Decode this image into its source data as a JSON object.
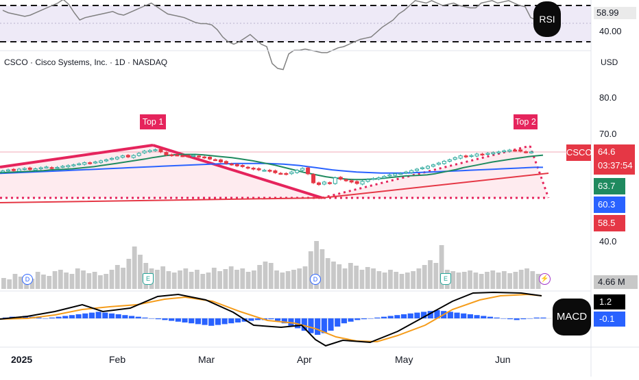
{
  "header": {
    "symbol_line": "CSCO · Cisco Systems, Inc. · 1D · NASDAQ",
    "currency": "USD"
  },
  "price_axis": {
    "ticks": [
      "80.0",
      "70.0",
      "40.0"
    ],
    "labels": [
      {
        "text": "CSCO",
        "bg": "#e53745",
        "fg": "#ffffff"
      },
      {
        "text": "64.6",
        "bg": "#e53745",
        "fg": "#ffffff"
      },
      {
        "text": "03:37:54",
        "bg": "#e53745",
        "fg": "#ffffff"
      },
      {
        "text": "63.7",
        "bg": "#1f8a5f",
        "fg": "#ffffff"
      },
      {
        "text": "60.3",
        "bg": "#2962ff",
        "fg": "#ffffff"
      },
      {
        "text": "58.5",
        "bg": "#e53745",
        "fg": "#ffffff"
      }
    ]
  },
  "rsi": {
    "badge": "RSI",
    "value_label": "58.99",
    "level_label": "40.00",
    "upper_level": 70,
    "lower_level": 40,
    "values": [
      66,
      64,
      63,
      62,
      61,
      62,
      64,
      66,
      68,
      70,
      72,
      75,
      71,
      64,
      58,
      60,
      61,
      62,
      63,
      64,
      65,
      63,
      62,
      64,
      66,
      68,
      70,
      72,
      69,
      66,
      63,
      62,
      61,
      60,
      58,
      56,
      55,
      55,
      54,
      50,
      44,
      40,
      38,
      40,
      43,
      46,
      42,
      38,
      36,
      22,
      18,
      17,
      30,
      33,
      33,
      34,
      33,
      32,
      31,
      31,
      33,
      35,
      36,
      38,
      40,
      42,
      43,
      44,
      48,
      52,
      55,
      58,
      63,
      66,
      70,
      74,
      73,
      72,
      74,
      72,
      70,
      71,
      72,
      70,
      69,
      68,
      68,
      72,
      73,
      74,
      72,
      73,
      74,
      72,
      70,
      69,
      60,
      58,
      59
    ]
  },
  "volume": {
    "value_label": "4.66 M",
    "event_markers": [
      "D",
      "E",
      "D",
      "E"
    ]
  },
  "macd": {
    "badge": "MACD",
    "value_label": "1.2",
    "signal_label": "-0.1"
  },
  "annotations": [
    {
      "text": "Top 1",
      "color": "#e5245c"
    },
    {
      "text": "Top 2",
      "color": "#e5245c"
    }
  ],
  "time_axis": {
    "labels": [
      "2025",
      "Feb",
      "Mar",
      "Apr",
      "May",
      "Jun"
    ]
  },
  "chart_data": {
    "type": "candlestick",
    "symbol": "CSCO",
    "interval": "1D",
    "price_ticks": [
      40.0,
      70.0,
      80.0
    ],
    "ylim": [
      39.0,
      88.0
    ],
    "x_labels": [
      "2025",
      "Feb",
      "Mar",
      "Apr",
      "May",
      "Jun"
    ],
    "current_price": 64.6,
    "ema_fast": 63.7,
    "ema_slow": 60.3,
    "trend_level": 58.5,
    "close": [
      59.3,
      59.6,
      59.4,
      59.8,
      60.0,
      59.7,
      59.9,
      60.2,
      60.4,
      60.1,
      60.3,
      60.6,
      60.8,
      61.0,
      61.3,
      61.6,
      61.4,
      61.8,
      62.1,
      62.4,
      62.8,
      63.1,
      63.5,
      63.2,
      63.6,
      64.2,
      64.8,
      65.0,
      65.2,
      64.6,
      63.8,
      63.6,
      63.7,
      63.5,
      63.3,
      63.6,
      63.2,
      63.0,
      62.6,
      62.4,
      61.8,
      61.4,
      61.1,
      60.7,
      60.5,
      60.1,
      59.8,
      59.6,
      59.5,
      59.2,
      58.8,
      58.6,
      58.4,
      59.0,
      59.5,
      60.0,
      58.5,
      56.0,
      55.5,
      56.2,
      55.8,
      57.4,
      57.0,
      56.6,
      56.2,
      55.8,
      56.4,
      56.9,
      57.2,
      57.4,
      57.8,
      58.2,
      58.5,
      58.6,
      59.0,
      59.4,
      59.8,
      60.2,
      60.6,
      61.0,
      61.5,
      62.0,
      62.4,
      63.0,
      63.5,
      63.2,
      63.6,
      64.0,
      63.8,
      64.2,
      64.4,
      64.6,
      64.9,
      65.1,
      65.0,
      64.8,
      64.5,
      64.6
    ],
    "ema_fast_series": [
      58.8,
      58.9,
      59.0,
      59.1,
      59.2,
      59.3,
      59.4,
      59.6,
      59.7,
      59.8,
      59.9,
      60.1,
      60.3,
      60.5,
      60.8,
      61.1,
      61.4,
      61.7,
      62.0,
      62.3,
      62.6,
      63.0,
      63.3,
      63.6,
      63.8,
      63.9,
      63.9,
      63.9,
      63.8,
      63.6,
      63.4,
      63.2,
      63.0,
      62.7,
      62.4,
      62.1,
      61.7,
      61.3,
      60.9,
      60.4,
      59.9,
      59.4,
      58.9,
      58.5,
      58.1,
      57.7,
      57.4,
      57.2,
      57.0,
      56.9,
      56.9,
      57.0,
      57.1,
      57.3,
      57.5,
      57.7,
      57.9,
      58.0,
      58.1,
      58.2,
      58.5,
      58.9,
      59.3,
      59.7,
      60.2,
      60.6,
      61.0,
      61.4,
      61.8,
      62.1,
      62.4,
      62.7,
      63.0,
      63.3,
      63.5,
      63.7
    ],
    "ema_slow_series": [
      58.6,
      58.7,
      58.8,
      58.9,
      59.0,
      59.1,
      59.2,
      59.3,
      59.4,
      59.5,
      59.6,
      59.7,
      59.8,
      59.9,
      60.0,
      60.1,
      60.2,
      60.3,
      60.4,
      60.5,
      60.6,
      60.7,
      60.8,
      60.9,
      61.0,
      61.1,
      61.2,
      61.3,
      61.3,
      61.4,
      61.4,
      61.4,
      61.4,
      61.4,
      61.3,
      61.2,
      61.0,
      60.8,
      60.5,
      60.2,
      59.9,
      59.6,
      59.4,
      59.2,
      59.0,
      58.9,
      58.8,
      58.7,
      58.7,
      58.7,
      58.7,
      58.8,
      58.9,
      59.0,
      59.1,
      59.2,
      59.3,
      59.4,
      59.5,
      59.6,
      59.7,
      59.8,
      59.9,
      60.0,
      60.1,
      60.2,
      60.3,
      60.3
    ],
    "annotations": [
      "Top 1",
      "Top 2"
    ]
  },
  "colors": {
    "up": "#26a69a",
    "down": "#e53745",
    "pattern": "#e5245c",
    "ema_fast": "#1f8a5f",
    "ema_slow": "#2962ff",
    "trend": "#e53745",
    "volume": "#c8c8c8",
    "macd_line": "#000000",
    "signal_line": "#f59c1a",
    "hist": "#2962ff"
  }
}
